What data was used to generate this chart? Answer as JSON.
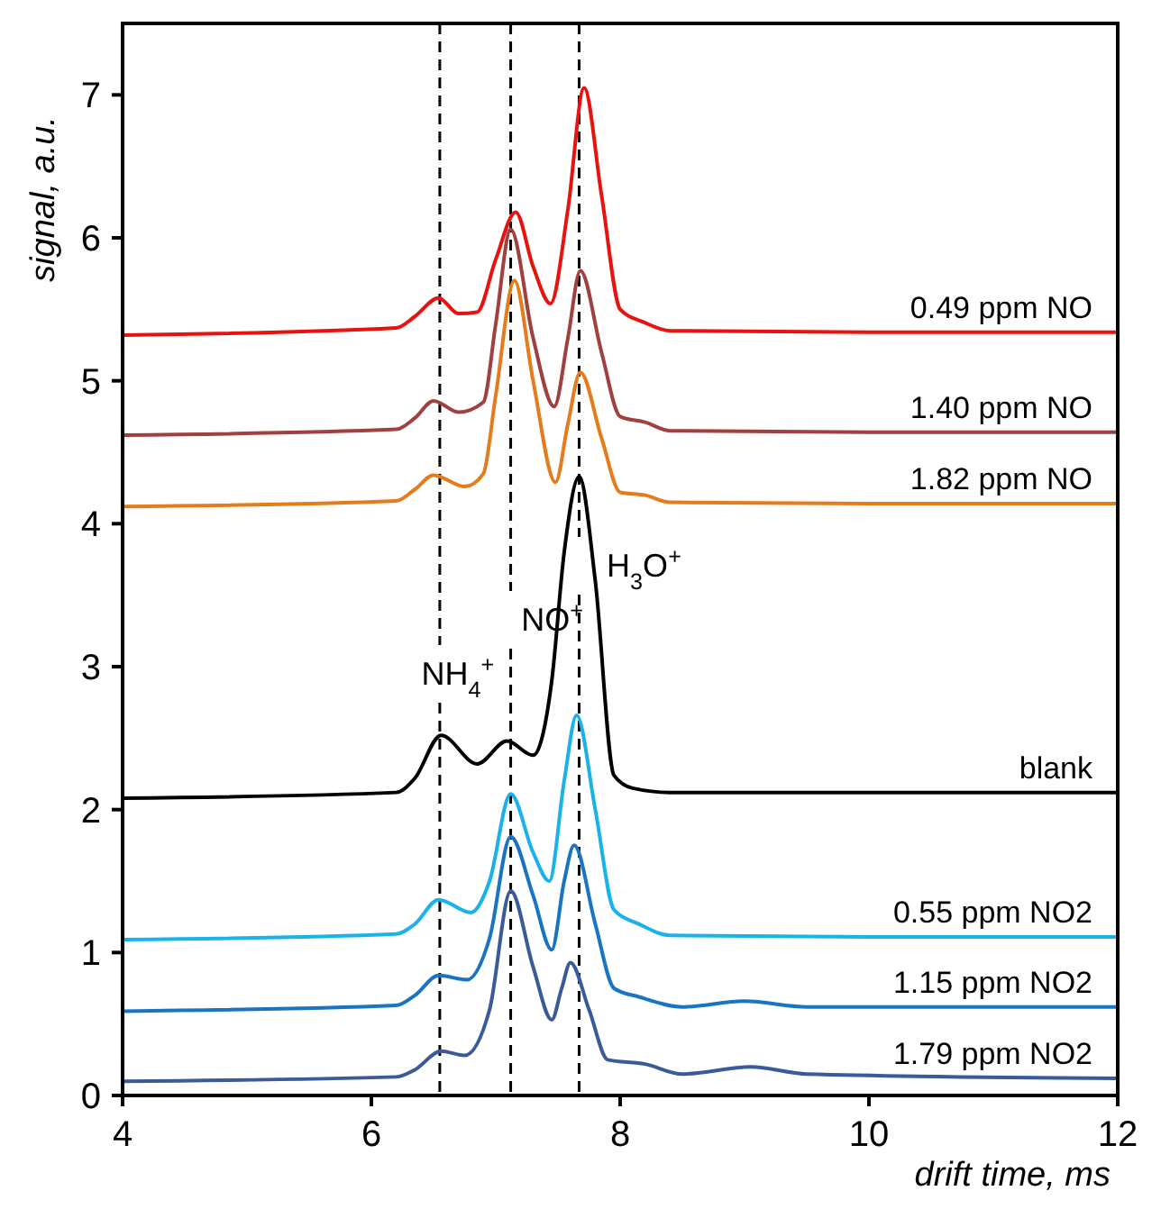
{
  "chart_data": {
    "type": "line",
    "xlabel": "drift time, ms",
    "ylabel": "signal, a.u.",
    "xlim": [
      4,
      12
    ],
    "ylim": [
      0,
      7.5
    ],
    "xticks": [
      4,
      6,
      8,
      10,
      12
    ],
    "yticks": [
      0,
      1,
      2,
      3,
      4,
      5,
      6,
      7
    ],
    "grid": false,
    "marker": "none",
    "line_style": "solid",
    "series": [
      {
        "name": "0.49 ppm NO",
        "color": "#e8120f",
        "x": [
          4,
          6.2,
          6.35,
          6.54,
          6.7,
          6.85,
          7.0,
          7.16,
          7.3,
          7.44,
          7.58,
          7.71,
          7.85,
          8.0,
          8.19,
          8.4,
          10,
          12
        ],
        "values": [
          5.32,
          5.37,
          5.45,
          5.58,
          5.47,
          5.48,
          5.85,
          6.18,
          5.8,
          5.54,
          6.2,
          7.05,
          6.3,
          5.5,
          5.41,
          5.35,
          5.34,
          5.34
        ]
      },
      {
        "name": "1.40 ppm NO",
        "color": "#a0403f",
        "x": [
          4,
          6.2,
          6.35,
          6.5,
          6.7,
          6.9,
          7.0,
          7.12,
          7.3,
          7.47,
          7.58,
          7.68,
          7.85,
          8.0,
          8.2,
          8.4,
          10,
          12
        ],
        "values": [
          4.62,
          4.66,
          4.74,
          4.86,
          4.78,
          4.85,
          5.4,
          6.06,
          5.3,
          4.82,
          5.3,
          5.77,
          5.2,
          4.75,
          4.71,
          4.65,
          4.64,
          4.64
        ]
      },
      {
        "name": "1.82 ppm NO",
        "color": "#e57c1c",
        "x": [
          4,
          6.2,
          6.35,
          6.5,
          6.75,
          6.9,
          7.0,
          7.15,
          7.3,
          7.48,
          7.58,
          7.68,
          7.85,
          8.0,
          8.2,
          8.4,
          10,
          12
        ],
        "values": [
          4.12,
          4.16,
          4.24,
          4.34,
          4.26,
          4.35,
          4.9,
          5.7,
          5.0,
          4.29,
          4.7,
          5.06,
          4.6,
          4.22,
          4.2,
          4.15,
          4.14,
          4.14
        ]
      },
      {
        "name": "blank",
        "color": "#000000",
        "x": [
          4,
          6.2,
          6.35,
          6.56,
          6.85,
          7.09,
          7.3,
          7.45,
          7.55,
          7.67,
          7.8,
          7.95,
          8.1,
          8.4,
          10,
          12
        ],
        "values": [
          2.08,
          2.12,
          2.22,
          2.52,
          2.32,
          2.48,
          2.38,
          2.9,
          3.8,
          4.33,
          3.6,
          2.24,
          2.15,
          2.12,
          2.12,
          2.12
        ]
      },
      {
        "name": "0.55 ppm NO2",
        "color": "#1ab2ea",
        "x": [
          4,
          6.2,
          6.35,
          6.54,
          6.8,
          6.95,
          7.12,
          7.3,
          7.43,
          7.55,
          7.65,
          7.8,
          7.95,
          8.15,
          8.4,
          10,
          12
        ],
        "values": [
          1.09,
          1.13,
          1.2,
          1.37,
          1.28,
          1.5,
          2.11,
          1.7,
          1.5,
          2.2,
          2.66,
          2.0,
          1.3,
          1.2,
          1.12,
          1.11,
          1.11
        ]
      },
      {
        "name": "1.15 ppm NO2",
        "color": "#1a74c4",
        "x": [
          4,
          6.2,
          6.35,
          6.54,
          6.77,
          6.95,
          7.12,
          7.3,
          7.45,
          7.55,
          7.63,
          7.8,
          7.95,
          8.15,
          8.5,
          9.0,
          9.5,
          12
        ],
        "values": [
          0.59,
          0.63,
          0.7,
          0.84,
          0.81,
          1.1,
          1.81,
          1.4,
          1.02,
          1.5,
          1.75,
          1.2,
          0.75,
          0.69,
          0.62,
          0.66,
          0.62,
          0.62
        ]
      },
      {
        "name": "1.79 ppm NO2",
        "color": "#3a5a98",
        "x": [
          4,
          6.2,
          6.35,
          6.56,
          6.75,
          6.95,
          7.12,
          7.3,
          7.45,
          7.53,
          7.6,
          7.75,
          7.9,
          8.2,
          8.5,
          9.05,
          9.5,
          12
        ],
        "values": [
          0.1,
          0.13,
          0.18,
          0.31,
          0.28,
          0.6,
          1.43,
          0.9,
          0.53,
          0.75,
          0.93,
          0.6,
          0.25,
          0.22,
          0.15,
          0.2,
          0.15,
          0.12
        ]
      }
    ],
    "ref_lines": [
      {
        "axis": "x",
        "value": 6.55,
        "label": "NH$_{4}$$^{+}$",
        "color": "#000000",
        "line_style": "dashed"
      },
      {
        "axis": "x",
        "value": 7.12,
        "label": "NO$^{+}$",
        "color": "#000000",
        "line_style": "dashed"
      },
      {
        "axis": "x",
        "value": 7.67,
        "label": "H$_{3}$O$^{+}$",
        "color": "#000000",
        "line_style": "dashed"
      }
    ]
  }
}
